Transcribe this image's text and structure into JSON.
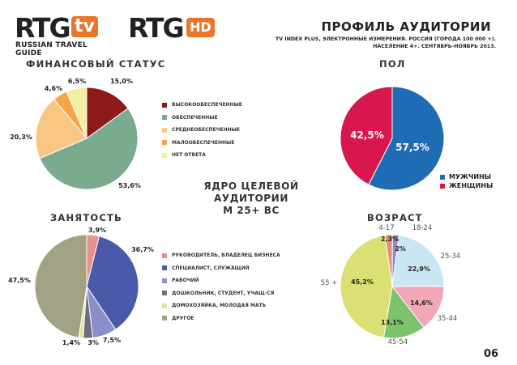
{
  "header": {
    "logo1_main": "RTG",
    "logo1_badge": "tv",
    "logo1_tagline": "RUSSIAN TRAVEL GUIDE",
    "logo2_main": "RTG",
    "logo2_badge": "HD",
    "title": "ПРОФИЛЬ АУДИТОРИИ",
    "subtitle_line1": "TV INDEX PLUS, ЭЛЕКТРОННЫЕ ИЗМЕРЕНИЯ. РОССИЯ (ГОРОДА 100 000 +).",
    "subtitle_line2": "НАСЕЛЕНИЕ 4+. СЕНТЯБРЬ-НОЯБРЬ 2013."
  },
  "core_label_lines": [
    "ЯДРО ЦЕЛЕВОЙ",
    "АУДИТОРИИ",
    "М 25+ BC"
  ],
  "page_number": "06",
  "colors": {
    "dark_red": "#8e1b1b",
    "green": "#7aab8f",
    "peach": "#f9c784",
    "orange": "#f5a545",
    "light_yellow": "#f2eea4",
    "blue": "#1f6bb4",
    "crimson": "#d8174f",
    "pink": "#f1a7b8",
    "rose": "#e98f8f",
    "violet": "#8a8ec9",
    "navy": "#4a5aa8",
    "grey_green": "#a2a384",
    "light_blue": "#c9e6f3",
    "lime": "#dbe075",
    "mid_green": "#7cc36b",
    "salmon": "#e98c73"
  },
  "chart_data": [
    {
      "type": "pie",
      "title": "ФИНАНСОВЫЙ СТАТУС",
      "labels": [
        "ВЫСОКООБЕСПЕЧЕННЫЕ",
        "ОБЕСПЕЧЕННЫЕ",
        "СРЕДНЕОБЕСПЕЧЕННЫЕ",
        "МАЛООБЕСПЕЧЕННЫЕ",
        "НЕТ ОТВЕТА"
      ],
      "values": [
        15.0,
        53.6,
        20.3,
        4.6,
        6.5
      ],
      "value_labels": [
        "15,0%",
        "53,6%",
        "20,3%",
        "4,6%",
        "6,5%"
      ],
      "colors": [
        "#8e1b1b",
        "#7aab8f",
        "#f9c784",
        "#f5a545",
        "#f2eea4"
      ],
      "legend_position": "right"
    },
    {
      "type": "pie",
      "title": "ПОЛ",
      "labels": [
        "МУЖЧИНЫ",
        "ЖЕНЩИНЫ"
      ],
      "values": [
        57.5,
        42.5
      ],
      "value_labels": [
        "57,5%",
        "42,5%"
      ],
      "colors": [
        "#1f6bb4",
        "#d8174f"
      ],
      "legend_position": "bottom-right"
    },
    {
      "type": "pie",
      "title": "ЗАНЯТОСТЬ",
      "labels": [
        "РУКОВОДИТЕЛЬ, ВЛАДЕЛЕЦ БИЗНЕСА",
        "СПЕЦИАЛИСТ, СЛУЖАЩИЙ",
        "РАБОЧИЙ",
        "ДОШКОЛЬНИК, СТУДЕНТ, УЧАЩ-СЯ",
        "ДОМОХОЗЯЙКА, МОЛОДАЯ МАТЬ",
        "ДРУГОЕ"
      ],
      "values": [
        3.9,
        36.7,
        7.5,
        3.0,
        1.4,
        47.5
      ],
      "value_labels": [
        "3,9%",
        "36,7%",
        "7,5%",
        "3%",
        "1,4%",
        "47,5%"
      ],
      "colors": [
        "#e98f8f",
        "#4a5aa8",
        "#8a8ec9",
        "#6e6e80",
        "#e4e4a2",
        "#a2a384"
      ],
      "legend_position": "right"
    },
    {
      "type": "pie",
      "title": "ВОЗРАСТ",
      "labels": [
        "4-17",
        "18-24",
        "25-34",
        "35-44",
        "45-54",
        "55 +"
      ],
      "values": [
        2.3,
        2.0,
        22.9,
        14.6,
        13.1,
        45.2
      ],
      "value_labels": [
        "2,3%",
        "2%",
        "22,9%",
        "14,6%",
        "13,1%",
        "45,2%"
      ],
      "colors": [
        "#e98c73",
        "#8a8ec9",
        "#c9e6f3",
        "#f1a7b8",
        "#7cc36b",
        "#dbe075"
      ],
      "legend_position": "none"
    }
  ]
}
